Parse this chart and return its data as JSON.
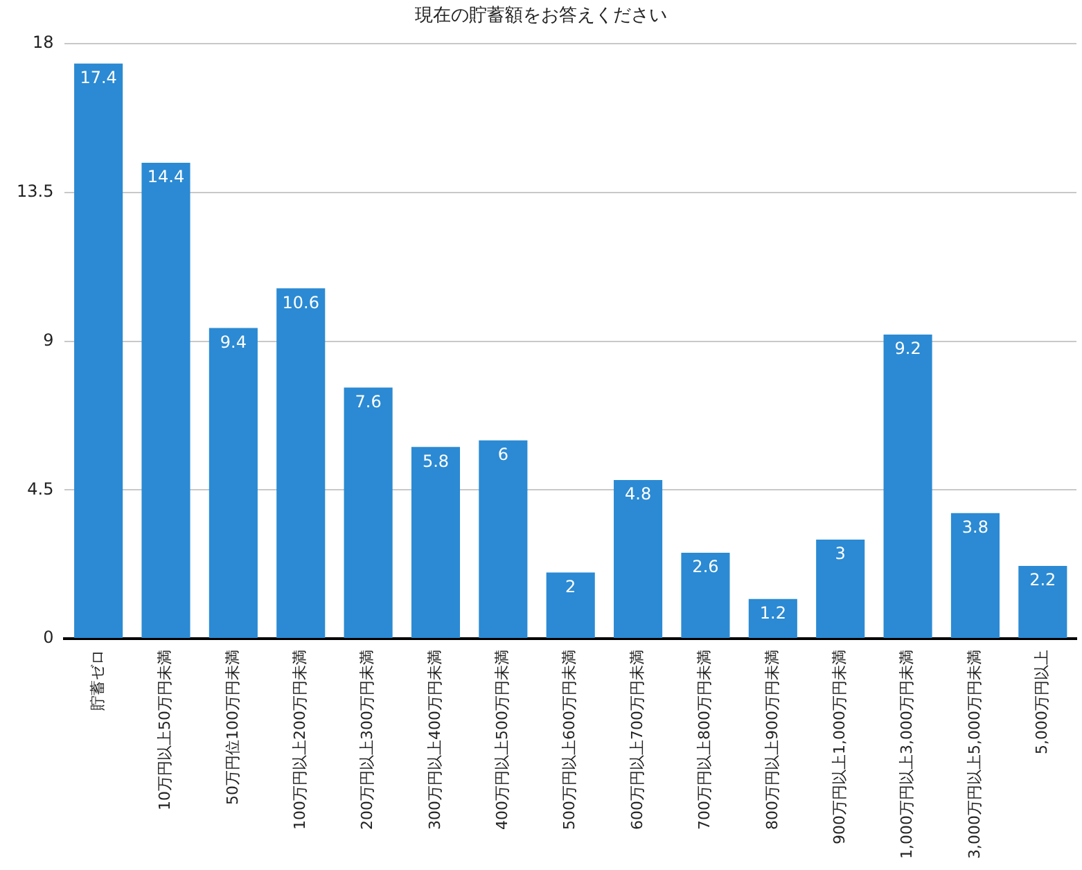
{
  "chart_data": {
    "type": "bar",
    "title": "現在の貯蓄額をお答えください",
    "categories": [
      "貯蓄ゼロ",
      "10万円以上50万円未満",
      "50万円位100万円未満",
      "100万円以上200万円未満",
      "200万円以上300万円未満",
      "300万円以上400万円未満",
      "400万円以上500万円未満",
      "500万円以上600万円未満",
      "600万円以上700万円未満",
      "700万円以上800万円未満",
      "800万円以上900万円未満",
      "900万円以上1,000万円未満",
      "1,000万円以上3,000万円未満",
      "3,000万円以上5,000万円未満",
      "5,000万円以上"
    ],
    "values": [
      17.4,
      14.4,
      9.4,
      10.6,
      7.6,
      5.8,
      6,
      2,
      4.8,
      2.6,
      1.2,
      3,
      9.2,
      3.8,
      2.2
    ],
    "color": "#2b8ad3",
    "ylim": [
      0,
      18
    ],
    "yticks": [
      0,
      4.5,
      9,
      13.5,
      18
    ],
    "grid": "y",
    "data_labels": true
  }
}
